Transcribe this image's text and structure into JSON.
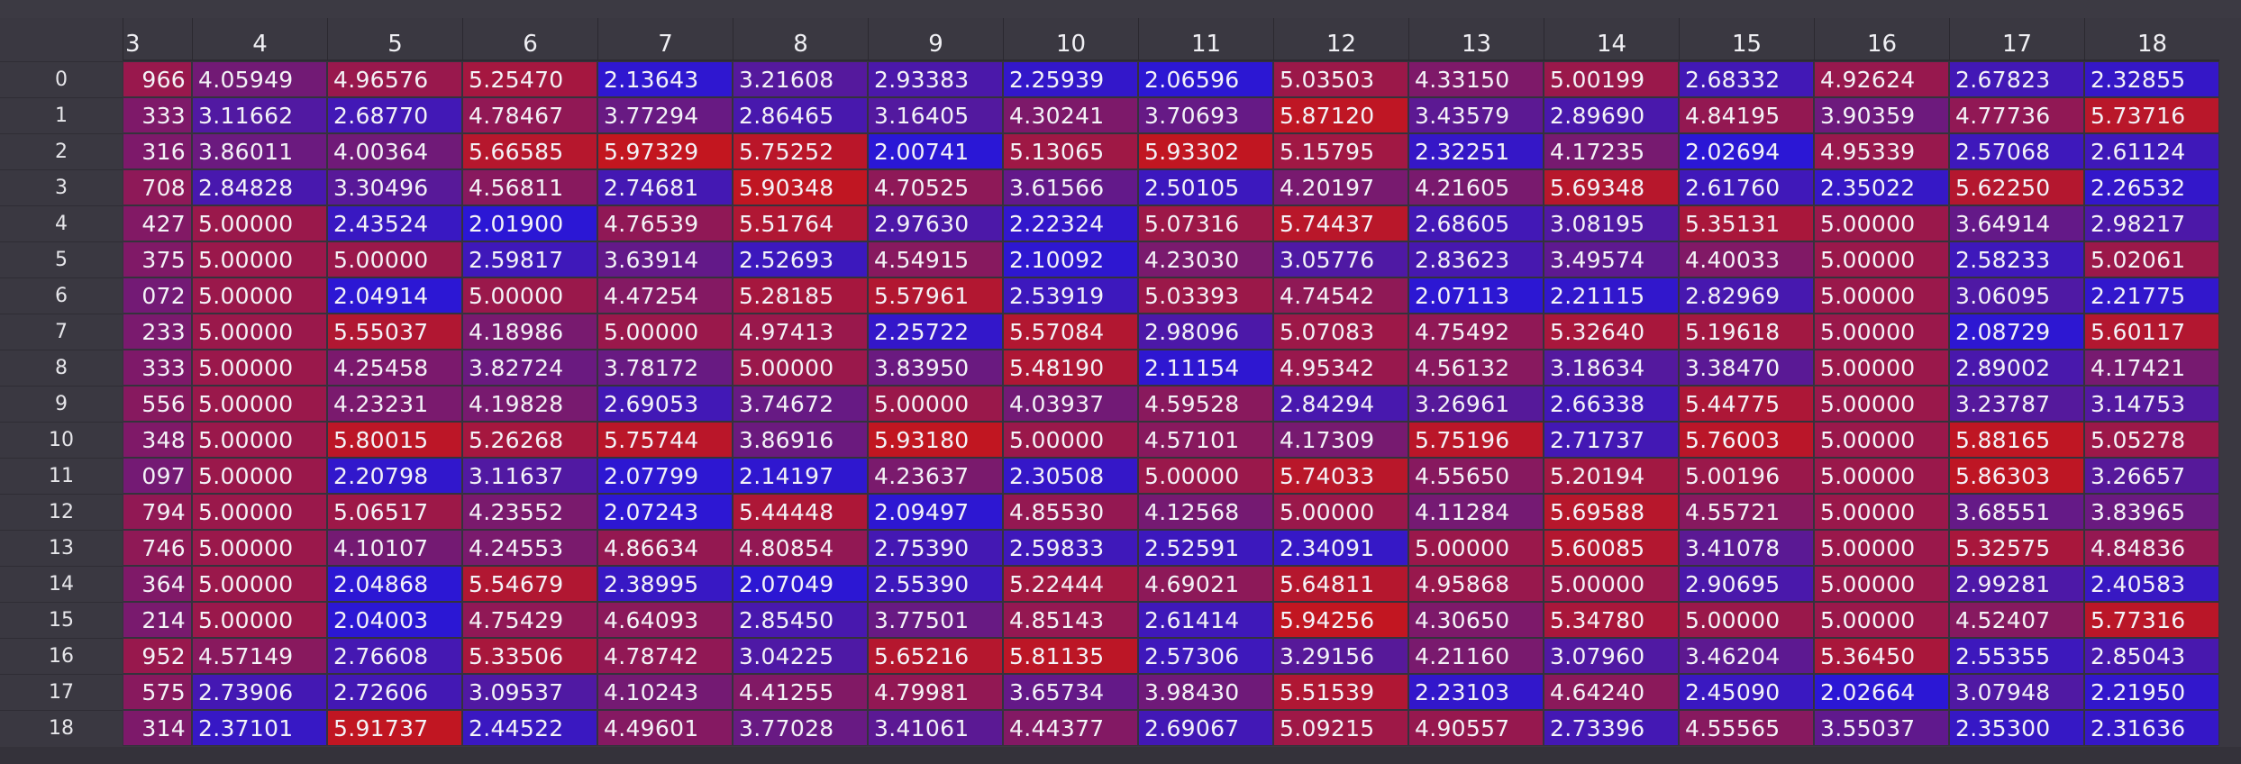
{
  "column_headers": [
    "3",
    "4",
    "5",
    "6",
    "7",
    "8",
    "9",
    "10",
    "11",
    "12",
    "13",
    "14",
    "15",
    "16",
    "17",
    "18"
  ],
  "row_headers": [
    "0",
    "1",
    "2",
    "3",
    "4",
    "5",
    "6",
    "7",
    "8",
    "9",
    "10",
    "11",
    "12",
    "13",
    "14",
    "15",
    "16",
    "17",
    "18"
  ],
  "cells": [
    [
      "966",
      "4.05949",
      "4.96576",
      "5.25470",
      "2.13643",
      "3.21608",
      "2.93383",
      "2.25939",
      "2.06596",
      "5.03503",
      "4.33150",
      "5.00199",
      "2.68332",
      "4.92624",
      "2.67823",
      "2.32855"
    ],
    [
      "333",
      "3.11662",
      "2.68770",
      "4.78467",
      "3.77294",
      "2.86465",
      "3.16405",
      "4.30241",
      "3.70693",
      "5.87120",
      "3.43579",
      "2.89690",
      "4.84195",
      "3.90359",
      "4.77736",
      "5.73716"
    ],
    [
      "316",
      "3.86011",
      "4.00364",
      "5.66585",
      "5.97329",
      "5.75252",
      "2.00741",
      "5.13065",
      "5.93302",
      "5.15795",
      "2.32251",
      "4.17235",
      "2.02694",
      "4.95339",
      "2.57068",
      "2.61124"
    ],
    [
      "708",
      "2.84828",
      "3.30496",
      "4.56811",
      "2.74681",
      "5.90348",
      "4.70525",
      "3.61566",
      "2.50105",
      "4.20197",
      "4.21605",
      "5.69348",
      "2.61760",
      "2.35022",
      "5.62250",
      "2.26532"
    ],
    [
      "427",
      "5.00000",
      "2.43524",
      "2.01900",
      "4.76539",
      "5.51764",
      "2.97630",
      "2.22324",
      "5.07316",
      "5.74437",
      "2.68605",
      "3.08195",
      "5.35131",
      "5.00000",
      "3.64914",
      "2.98217"
    ],
    [
      "375",
      "5.00000",
      "5.00000",
      "2.59817",
      "3.63914",
      "2.52693",
      "4.54915",
      "2.10092",
      "4.23030",
      "3.05776",
      "2.83623",
      "3.49574",
      "4.40033",
      "5.00000",
      "2.58233",
      "5.02061"
    ],
    [
      "072",
      "5.00000",
      "2.04914",
      "5.00000",
      "4.47254",
      "5.28185",
      "5.57961",
      "2.53919",
      "5.03393",
      "4.74542",
      "2.07113",
      "2.21115",
      "2.82969",
      "5.00000",
      "3.06095",
      "2.21775"
    ],
    [
      "233",
      "5.00000",
      "5.55037",
      "4.18986",
      "5.00000",
      "4.97413",
      "2.25722",
      "5.57084",
      "2.98096",
      "5.07083",
      "4.75492",
      "5.32640",
      "5.19618",
      "5.00000",
      "2.08729",
      "5.60117"
    ],
    [
      "333",
      "5.00000",
      "4.25458",
      "3.82724",
      "3.78172",
      "5.00000",
      "3.83950",
      "5.48190",
      "2.11154",
      "4.95342",
      "4.56132",
      "3.18634",
      "3.38470",
      "5.00000",
      "2.89002",
      "4.17421"
    ],
    [
      "556",
      "5.00000",
      "4.23231",
      "4.19828",
      "2.69053",
      "3.74672",
      "5.00000",
      "4.03937",
      "4.59528",
      "2.84294",
      "3.26961",
      "2.66338",
      "5.44775",
      "5.00000",
      "3.23787",
      "3.14753"
    ],
    [
      "348",
      "5.00000",
      "5.80015",
      "5.26268",
      "5.75744",
      "3.86916",
      "5.93180",
      "5.00000",
      "4.57101",
      "4.17309",
      "5.75196",
      "2.71737",
      "5.76003",
      "5.00000",
      "5.88165",
      "5.05278"
    ],
    [
      "097",
      "5.00000",
      "2.20798",
      "3.11637",
      "2.07799",
      "2.14197",
      "4.23637",
      "2.30508",
      "5.00000",
      "5.74033",
      "4.55650",
      "5.20194",
      "5.00196",
      "5.00000",
      "5.86303",
      "3.26657"
    ],
    [
      "794",
      "5.00000",
      "5.06517",
      "4.23552",
      "2.07243",
      "5.44448",
      "2.09497",
      "4.85530",
      "4.12568",
      "5.00000",
      "4.11284",
      "5.69588",
      "4.55721",
      "5.00000",
      "3.68551",
      "3.83965"
    ],
    [
      "746",
      "5.00000",
      "4.10107",
      "4.24553",
      "4.86634",
      "4.80854",
      "2.75390",
      "2.59833",
      "2.52591",
      "2.34091",
      "5.00000",
      "5.60085",
      "3.41078",
      "5.00000",
      "5.32575",
      "4.84836"
    ],
    [
      "364",
      "5.00000",
      "2.04868",
      "5.54679",
      "2.38995",
      "2.07049",
      "2.55390",
      "5.22444",
      "4.69021",
      "5.64811",
      "4.95868",
      "5.00000",
      "2.90695",
      "5.00000",
      "2.99281",
      "2.40583"
    ],
    [
      "214",
      "5.00000",
      "2.04003",
      "4.75429",
      "4.64093",
      "2.85450",
      "3.77501",
      "4.85143",
      "2.61414",
      "5.94256",
      "4.30650",
      "5.34780",
      "5.00000",
      "5.00000",
      "4.52407",
      "5.77316"
    ],
    [
      "952",
      "4.57149",
      "2.76608",
      "5.33506",
      "4.78742",
      "3.04225",
      "5.65216",
      "5.81135",
      "2.57306",
      "3.29156",
      "4.21160",
      "3.07960",
      "3.46204",
      "5.36450",
      "2.55355",
      "2.85043"
    ],
    [
      "575",
      "2.73906",
      "2.72606",
      "3.09537",
      "4.10243",
      "4.41255",
      "4.79981",
      "3.65734",
      "3.98430",
      "5.51539",
      "2.23103",
      "4.64240",
      "2.45090",
      "2.02664",
      "3.07948",
      "2.21950"
    ],
    [
      "314",
      "2.37101",
      "5.91737",
      "2.44522",
      "4.49601",
      "3.77028",
      "3.41061",
      "4.44377",
      "2.69067",
      "5.09215",
      "4.90557",
      "2.73396",
      "4.55565",
      "3.55037",
      "2.35300",
      "2.31636"
    ]
  ],
  "first_column_full_values": [
    "",
    "",
    "",
    "",
    "",
    "",
    "",
    "",
    "",
    "",
    "",
    "",
    "",
    "",
    "",
    "",
    "",
    "",
    ""
  ],
  "colors": {
    "background": "#3a3841",
    "heat_low": "#2a17d6",
    "heat_high": "#c4161e"
  },
  "color_scale": {
    "min": 2.0,
    "max": 6.0
  }
}
